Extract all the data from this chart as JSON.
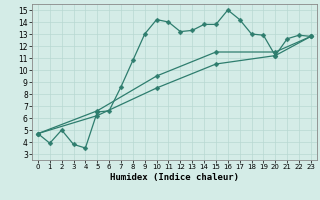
{
  "xlabel": "Humidex (Indice chaleur)",
  "xlim": [
    -0.5,
    23.5
  ],
  "ylim": [
    2.5,
    15.5
  ],
  "xticks": [
    0,
    1,
    2,
    3,
    4,
    5,
    6,
    7,
    8,
    9,
    10,
    11,
    12,
    13,
    14,
    15,
    16,
    17,
    18,
    19,
    20,
    21,
    22,
    23
  ],
  "yticks": [
    3,
    4,
    5,
    6,
    7,
    8,
    9,
    10,
    11,
    12,
    13,
    14,
    15
  ],
  "line_color": "#2e7d6e",
  "bg_color": "#d4ece7",
  "grid_color": "#b8d8d2",
  "line1_x": [
    0,
    1,
    2,
    3,
    4,
    5,
    6,
    7,
    8,
    9,
    10,
    11,
    12,
    13,
    14,
    15,
    16,
    17,
    18,
    19,
    20,
    21,
    22,
    23
  ],
  "line1_y": [
    4.7,
    3.9,
    5.0,
    3.8,
    3.5,
    6.5,
    6.6,
    8.6,
    10.8,
    13.0,
    14.2,
    14.0,
    13.2,
    13.3,
    13.8,
    13.8,
    15.0,
    14.2,
    13.0,
    12.9,
    11.2,
    12.6,
    12.9,
    12.8
  ],
  "line2_x": [
    0,
    5,
    10,
    15,
    20,
    23
  ],
  "line2_y": [
    4.7,
    6.6,
    9.5,
    11.5,
    11.5,
    12.8
  ],
  "line3_x": [
    0,
    5,
    10,
    15,
    20,
    23
  ],
  "line3_y": [
    4.7,
    6.2,
    8.5,
    10.5,
    11.2,
    12.8
  ],
  "markersize": 2.5,
  "linewidth": 0.9
}
